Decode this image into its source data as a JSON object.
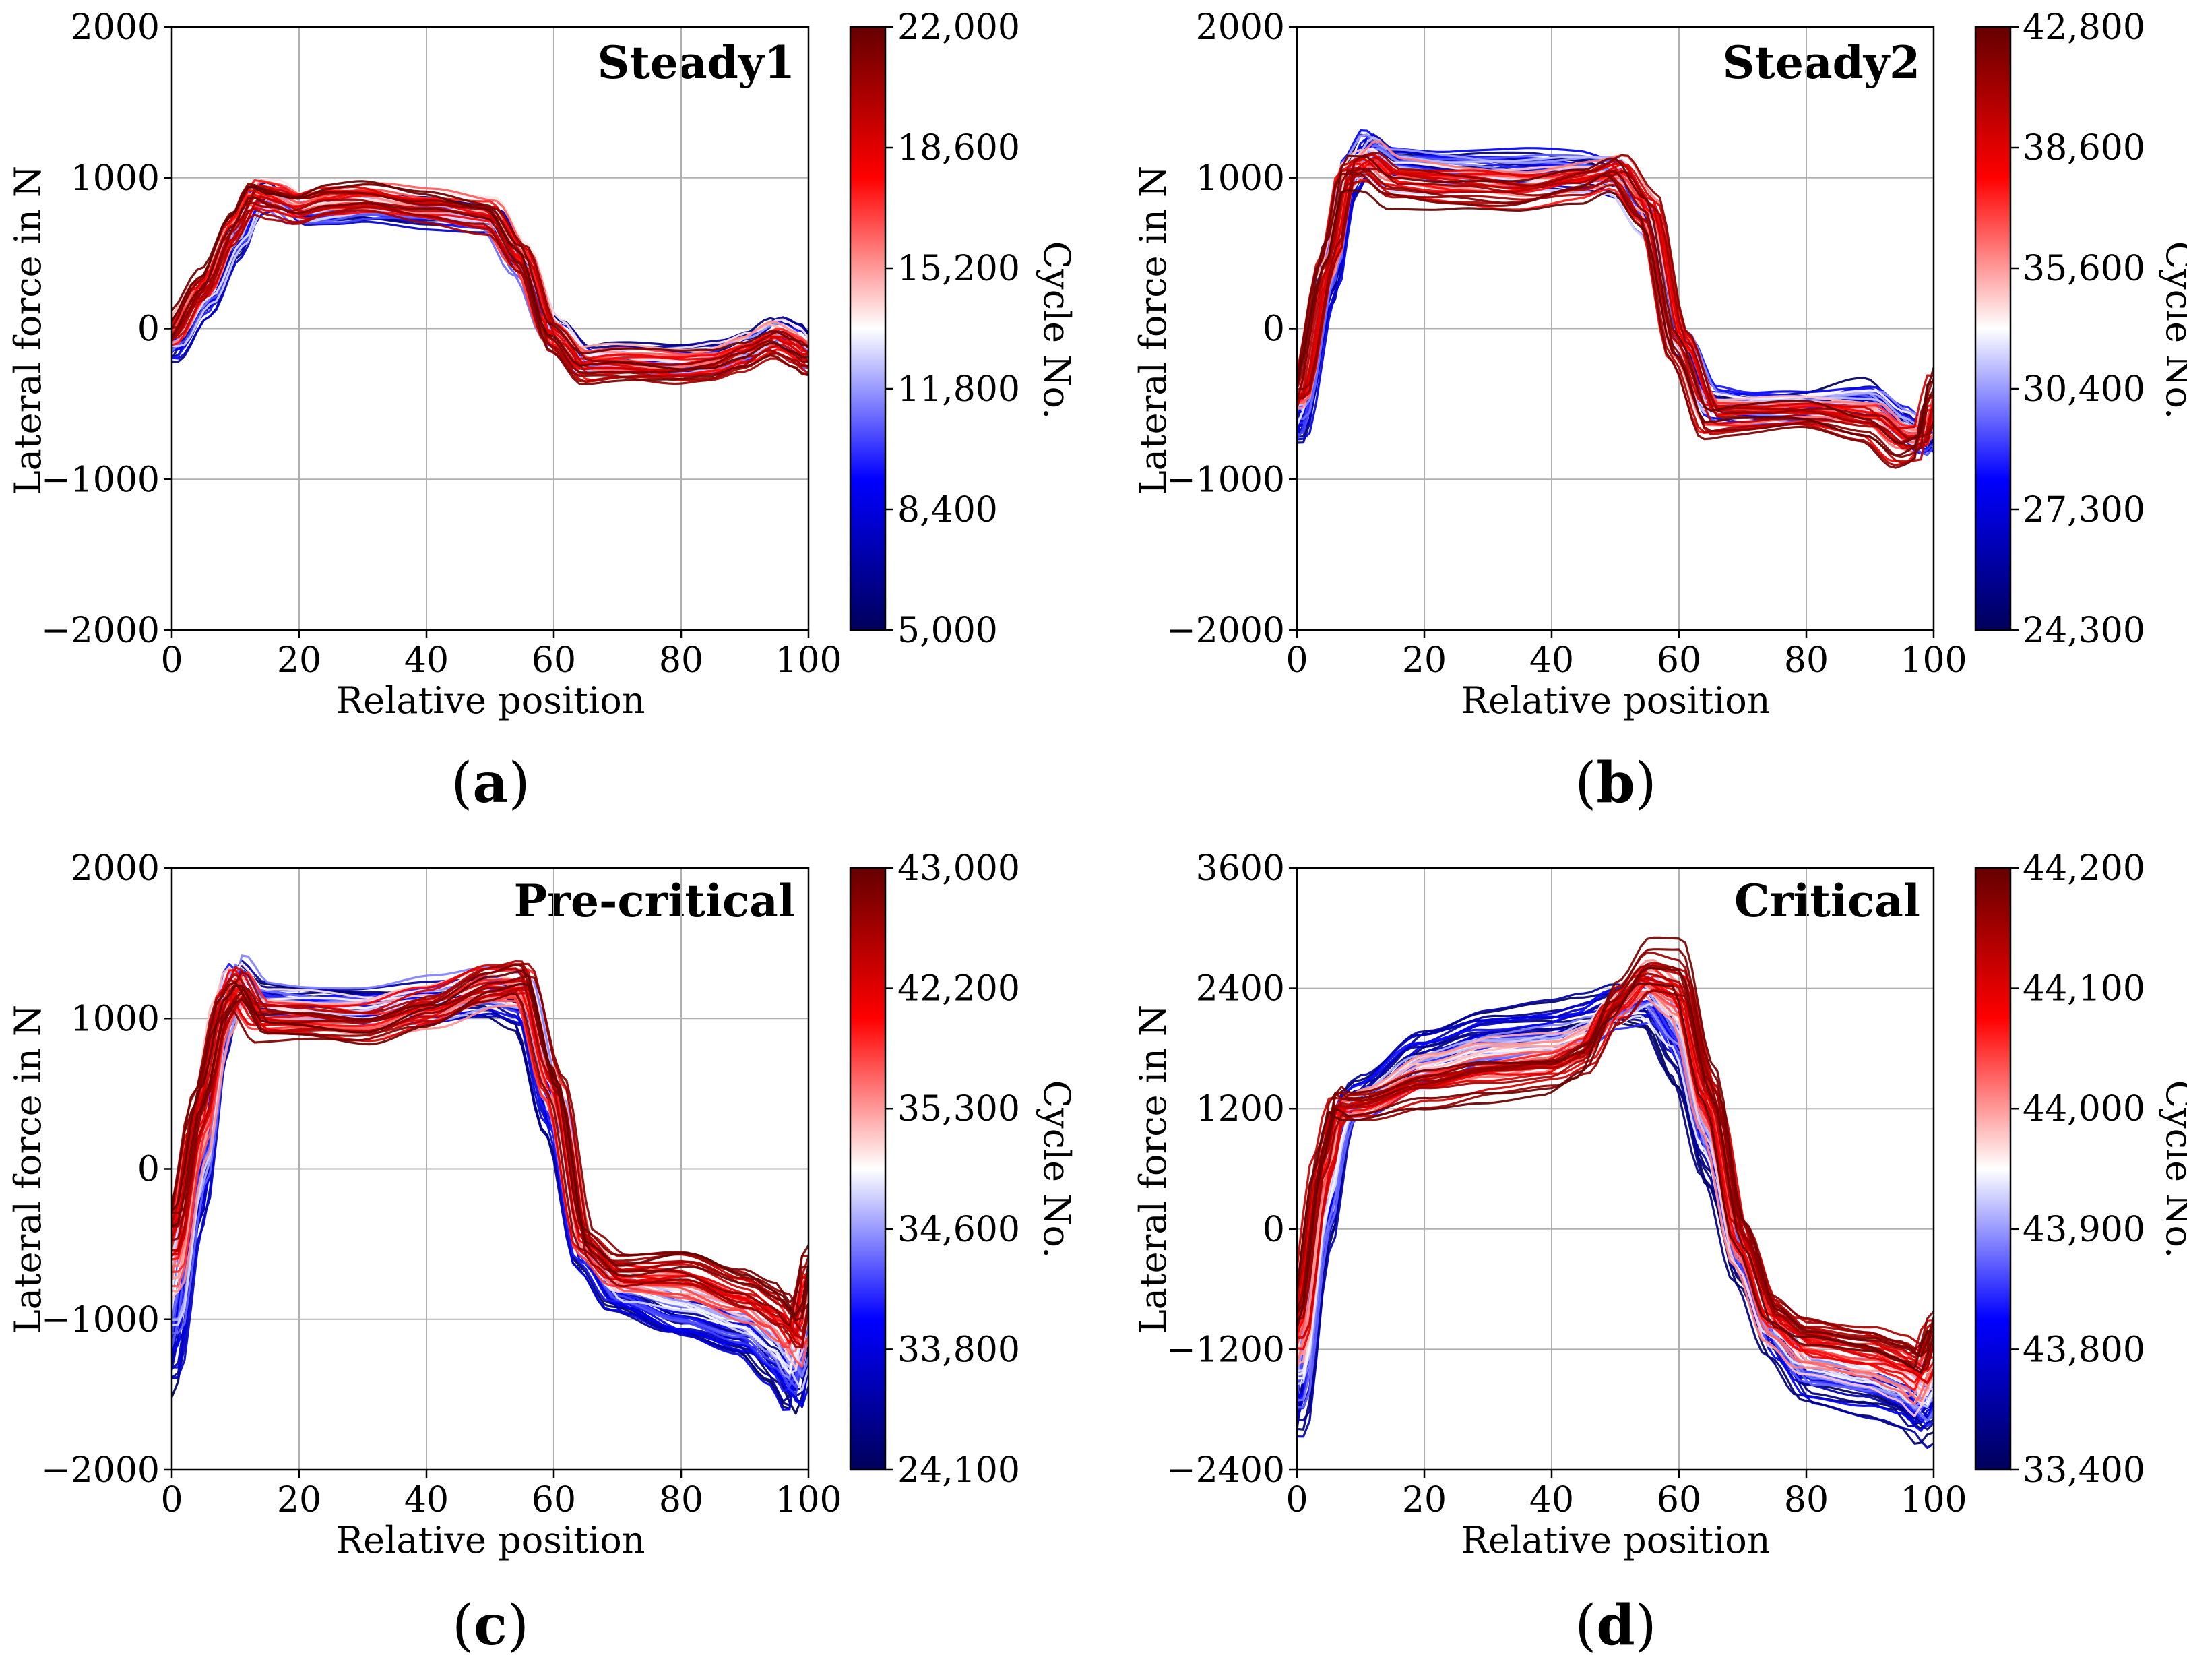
{
  "figure": {
    "colormap": {
      "low": "#00005a",
      "mid": "#ffffff",
      "high": "#650000"
    },
    "subplot_labels": [
      {
        "open": "(",
        "letter": "a",
        "close": ")"
      },
      {
        "open": "(",
        "letter": "b",
        "close": ")"
      },
      {
        "open": "(",
        "letter": "c",
        "close": ")"
      },
      {
        "open": "(",
        "letter": "d",
        "close": ")"
      }
    ]
  },
  "chart_data": [
    {
      "type": "line",
      "title": "Steady1",
      "xlabel": "Relative position",
      "ylabel": "Lateral force in N",
      "xlim": [
        0,
        100
      ],
      "ylim": [
        -2000,
        2000
      ],
      "xticks": [
        "0",
        "20",
        "40",
        "60",
        "80",
        "100"
      ],
      "yticks": [
        "2000",
        "1000",
        "0",
        "−1000",
        "−2000"
      ],
      "colorbar": {
        "label": "Cycle No.",
        "ticks": [
          "22,000",
          "18,600",
          "15,200",
          "11,800",
          "8,400",
          "5,000"
        ]
      },
      "series_count": 60,
      "templates": [
        {
          "name": "early cycles (blue)",
          "x": [
            0,
            5,
            10,
            13,
            16,
            20,
            25,
            30,
            40,
            50,
            55,
            60,
            65,
            70,
            80,
            85,
            90,
            95,
            98,
            100
          ],
          "y": [
            -150,
            150,
            550,
            850,
            900,
            750,
            740,
            770,
            760,
            740,
            400,
            0,
            -200,
            -180,
            -190,
            -170,
            -100,
            20,
            -30,
            -150
          ]
        },
        {
          "name": "late cycles (red)",
          "x": [
            0,
            5,
            10,
            13,
            16,
            20,
            25,
            30,
            40,
            50,
            55,
            60,
            65,
            70,
            80,
            85,
            90,
            95,
            98,
            100
          ],
          "y": [
            0,
            300,
            700,
            900,
            850,
            820,
            880,
            890,
            820,
            760,
            500,
            -50,
            -260,
            -250,
            -270,
            -250,
            -180,
            -90,
            -150,
            -200
          ]
        }
      ]
    },
    {
      "type": "line",
      "title": "Steady2",
      "xlabel": "Relative position",
      "ylabel": "Lateral force in N",
      "xlim": [
        0,
        100
      ],
      "ylim": [
        -2000,
        2000
      ],
      "xticks": [
        "0",
        "20",
        "40",
        "60",
        "80",
        "100"
      ],
      "yticks": [
        "2000",
        "1000",
        "0",
        "−1000",
        "−2000"
      ],
      "colorbar": {
        "label": "Cycle No.",
        "ticks": [
          "42,800",
          "38,600",
          "35,600",
          "30,400",
          "27,300",
          "24,300"
        ]
      },
      "series_count": 60,
      "templates": [
        {
          "name": "early cycles (blue)",
          "x": [
            0,
            5,
            8,
            11,
            15,
            25,
            35,
            45,
            50,
            55,
            60,
            65,
            70,
            80,
            90,
            95,
            98,
            100
          ],
          "y": [
            -700,
            300,
            1000,
            1250,
            1150,
            1130,
            1120,
            1080,
            1000,
            700,
            -100,
            -450,
            -500,
            -500,
            -400,
            -550,
            -700,
            -800
          ]
        },
        {
          "name": "late cycles (red)",
          "x": [
            0,
            5,
            8,
            11,
            15,
            25,
            35,
            45,
            50,
            55,
            60,
            65,
            70,
            80,
            90,
            95,
            98,
            100
          ],
          "y": [
            -400,
            500,
            1050,
            1050,
            930,
            900,
            870,
            950,
            1050,
            800,
            -100,
            -600,
            -580,
            -560,
            -650,
            -800,
            -750,
            -300
          ]
        }
      ]
    },
    {
      "type": "line",
      "title": "Pre-critical",
      "xlabel": "Relative position",
      "ylabel": "Lateral force in N",
      "xlim": [
        0,
        100
      ],
      "ylim": [
        -2000,
        2000
      ],
      "xticks": [
        "0",
        "20",
        "40",
        "60",
        "80",
        "100"
      ],
      "yticks": [
        "2000",
        "1000",
        "0",
        "−1000",
        "−2000"
      ],
      "colorbar": {
        "label": "Cycle No.",
        "ticks": [
          "43,000",
          "42,200",
          "35,300",
          "34,600",
          "33,800",
          "24,100"
        ]
      },
      "series_count": 70,
      "templates": [
        {
          "name": "early cycles (blue)",
          "x": [
            0,
            4,
            8,
            10,
            14,
            20,
            30,
            40,
            50,
            55,
            60,
            65,
            70,
            80,
            90,
            95,
            98,
            100
          ],
          "y": [
            -1500,
            -400,
            900,
            1300,
            1180,
            1160,
            1150,
            1150,
            1150,
            1050,
            300,
            -600,
            -900,
            -1100,
            -1200,
            -1400,
            -1600,
            -1200
          ]
        },
        {
          "name": "late cycles (red)",
          "x": [
            0,
            4,
            8,
            10,
            14,
            20,
            30,
            40,
            50,
            55,
            60,
            65,
            70,
            80,
            90,
            95,
            98,
            100
          ],
          "y": [
            -300,
            500,
            1100,
            1200,
            950,
            950,
            920,
            1050,
            1250,
            1300,
            600,
            -500,
            -650,
            -600,
            -750,
            -850,
            -1000,
            -600
          ]
        }
      ]
    },
    {
      "type": "line",
      "title": "Critical",
      "xlabel": "Relative position",
      "ylabel": "Lateral force in N",
      "xlim": [
        0,
        100
      ],
      "ylim": [
        -2400,
        3600
      ],
      "xticks": [
        "0",
        "20",
        "40",
        "60",
        "80",
        "100"
      ],
      "yticks": [
        "3600",
        "2400",
        "1200",
        "0",
        "−1200",
        "−2400"
      ],
      "colorbar": {
        "label": "Cycle No.",
        "ticks": [
          "44,200",
          "44,100",
          "44,000",
          "43,900",
          "43,800",
          "33,400"
        ]
      },
      "series_count": 70,
      "templates": [
        {
          "name": "early cycles (blue)",
          "x": [
            0,
            4,
            8,
            10,
            20,
            30,
            40,
            45,
            50,
            55,
            60,
            65,
            70,
            75,
            80,
            90,
            95,
            98,
            100
          ],
          "y": [
            -2000,
            -200,
            1200,
            1300,
            1800,
            2000,
            2050,
            2100,
            2150,
            2100,
            1500,
            500,
            -500,
            -1200,
            -1600,
            -1700,
            -1800,
            -2000,
            -1900
          ]
        },
        {
          "name": "late cycles (red)",
          "x": [
            0,
            4,
            6,
            8,
            10,
            20,
            30,
            40,
            45,
            50,
            55,
            60,
            65,
            70,
            75,
            80,
            90,
            95,
            98,
            100
          ],
          "y": [
            -800,
            800,
            1350,
            1250,
            1250,
            1400,
            1500,
            1550,
            1700,
            2300,
            2700,
            2700,
            1500,
            0,
            -800,
            -1000,
            -1100,
            -1200,
            -1300,
            -900
          ]
        }
      ]
    }
  ]
}
